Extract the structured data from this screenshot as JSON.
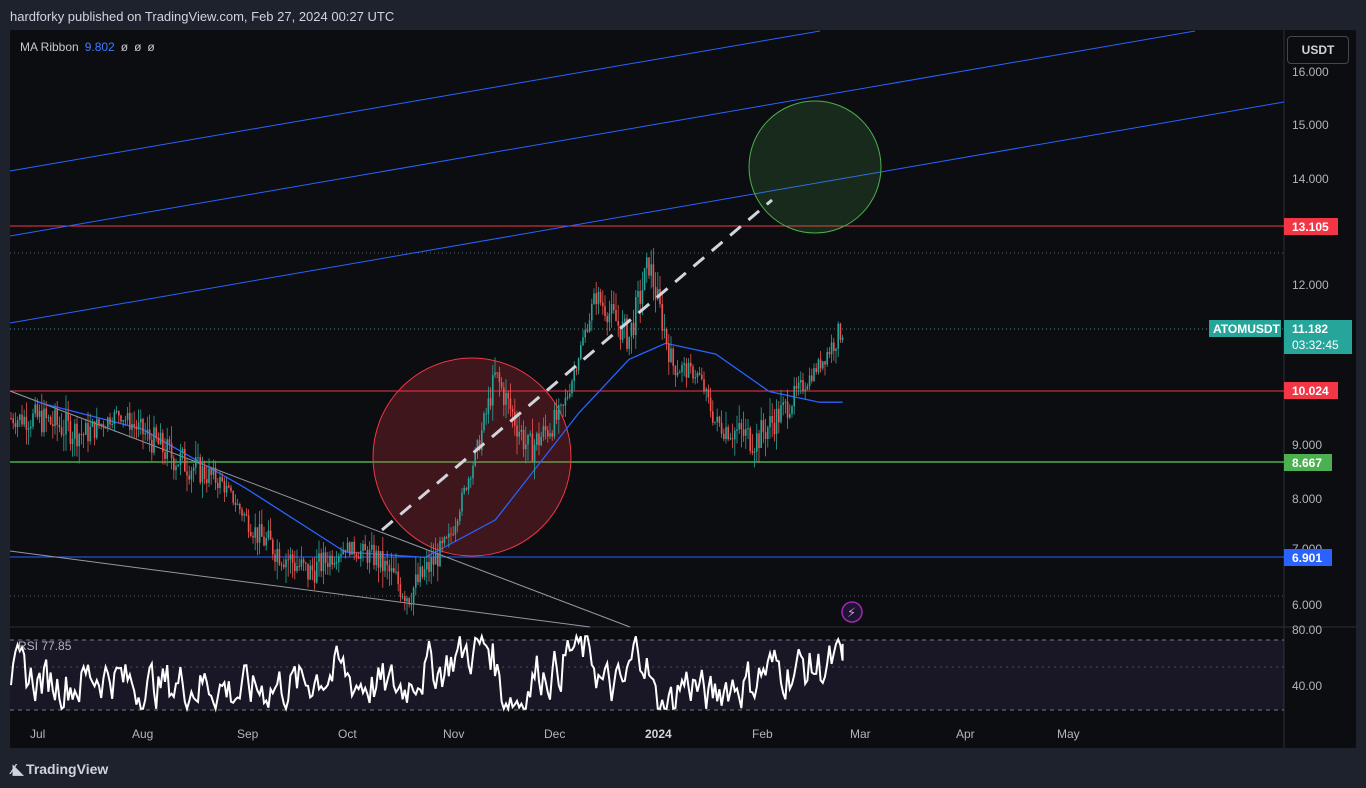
{
  "header": {
    "published": "hardforky published on TradingView.com, Feb 27, 2024 00:27 UTC"
  },
  "legend": {
    "name": "MA Ribbon",
    "value": "9.802",
    "nan1": "ø",
    "nan2": "ø",
    "nan3": "ø"
  },
  "currency": "USDT",
  "footer": {
    "brand": "TradingView"
  },
  "chart_data": {
    "type": "candlestick",
    "symbol": "ATOMUSDT",
    "price_scale": {
      "ticks": [
        "16.000",
        "15.000",
        "14.000",
        "12.000",
        "9.000",
        "8.000",
        "7.000",
        "6.000"
      ]
    },
    "time_axis": [
      "Jul",
      "Aug",
      "Sep",
      "Oct",
      "Nov",
      "Dec",
      "2024",
      "Feb",
      "Mar",
      "Apr",
      "May"
    ],
    "price_tags": [
      {
        "label": "13.105",
        "value": 13.105,
        "color": "#f23645"
      },
      {
        "label": "10.024",
        "value": 10.024,
        "color": "#f23645"
      },
      {
        "label": "8.667",
        "value": 8.667,
        "color": "#4caf50"
      },
      {
        "label": "6.901",
        "value": 6.901,
        "color": "#2962ff"
      }
    ],
    "last_price": {
      "symbol": "ATOMUSDT",
      "price": "11.182",
      "countdown": "03:32:45",
      "color": "#26a69a"
    },
    "key_path": [
      {
        "date": "2023-07-01",
        "price": 9.5
      },
      {
        "date": "2023-07-15",
        "price": 9.2
      },
      {
        "date": "2023-07-25",
        "price": 9.6
      },
      {
        "date": "2023-08-10",
        "price": 8.8
      },
      {
        "date": "2023-08-25",
        "price": 8.3
      },
      {
        "date": "2023-09-05",
        "price": 7.3
      },
      {
        "date": "2023-09-20",
        "price": 6.6
      },
      {
        "date": "2023-10-01",
        "price": 7.1
      },
      {
        "date": "2023-10-10",
        "price": 6.9
      },
      {
        "date": "2023-10-20",
        "price": 6.2
      },
      {
        "date": "2023-11-01",
        "price": 7.2
      },
      {
        "date": "2023-11-10",
        "price": 9.0
      },
      {
        "date": "2023-11-15",
        "price": 10.3
      },
      {
        "date": "2023-11-25",
        "price": 8.9
      },
      {
        "date": "2023-12-05",
        "price": 9.6
      },
      {
        "date": "2023-12-15",
        "price": 11.8
      },
      {
        "date": "2023-12-25",
        "price": 11.0
      },
      {
        "date": "2023-12-31",
        "price": 12.4
      },
      {
        "date": "2024-01-07",
        "price": 10.5
      },
      {
        "date": "2024-01-15",
        "price": 10.3
      },
      {
        "date": "2024-01-20",
        "price": 9.4
      },
      {
        "date": "2024-02-01",
        "price": 9.1
      },
      {
        "date": "2024-02-10",
        "price": 9.7
      },
      {
        "date": "2024-02-20",
        "price": 10.5
      },
      {
        "date": "2024-02-27",
        "price": 11.18
      }
    ],
    "ma_ribbon": [
      {
        "date": "2023-07-01",
        "price": 9.8
      },
      {
        "date": "2023-08-01",
        "price": 9.3
      },
      {
        "date": "2023-09-01",
        "price": 8.2
      },
      {
        "date": "2023-10-01",
        "price": 7.0
      },
      {
        "date": "2023-10-25",
        "price": 6.9
      },
      {
        "date": "2023-11-15",
        "price": 7.6
      },
      {
        "date": "2023-12-10",
        "price": 9.6
      },
      {
        "date": "2023-12-25",
        "price": 10.6
      },
      {
        "date": "2024-01-05",
        "price": 10.9
      },
      {
        "date": "2024-01-20",
        "price": 10.7
      },
      {
        "date": "2024-02-05",
        "price": 10.0
      },
      {
        "date": "2024-02-20",
        "price": 9.8
      },
      {
        "date": "2024-02-27",
        "price": 9.8
      }
    ],
    "rsi": {
      "label": "RSI",
      "value": "77.85",
      "ticks": [
        "80.00",
        "40.00"
      ]
    }
  }
}
